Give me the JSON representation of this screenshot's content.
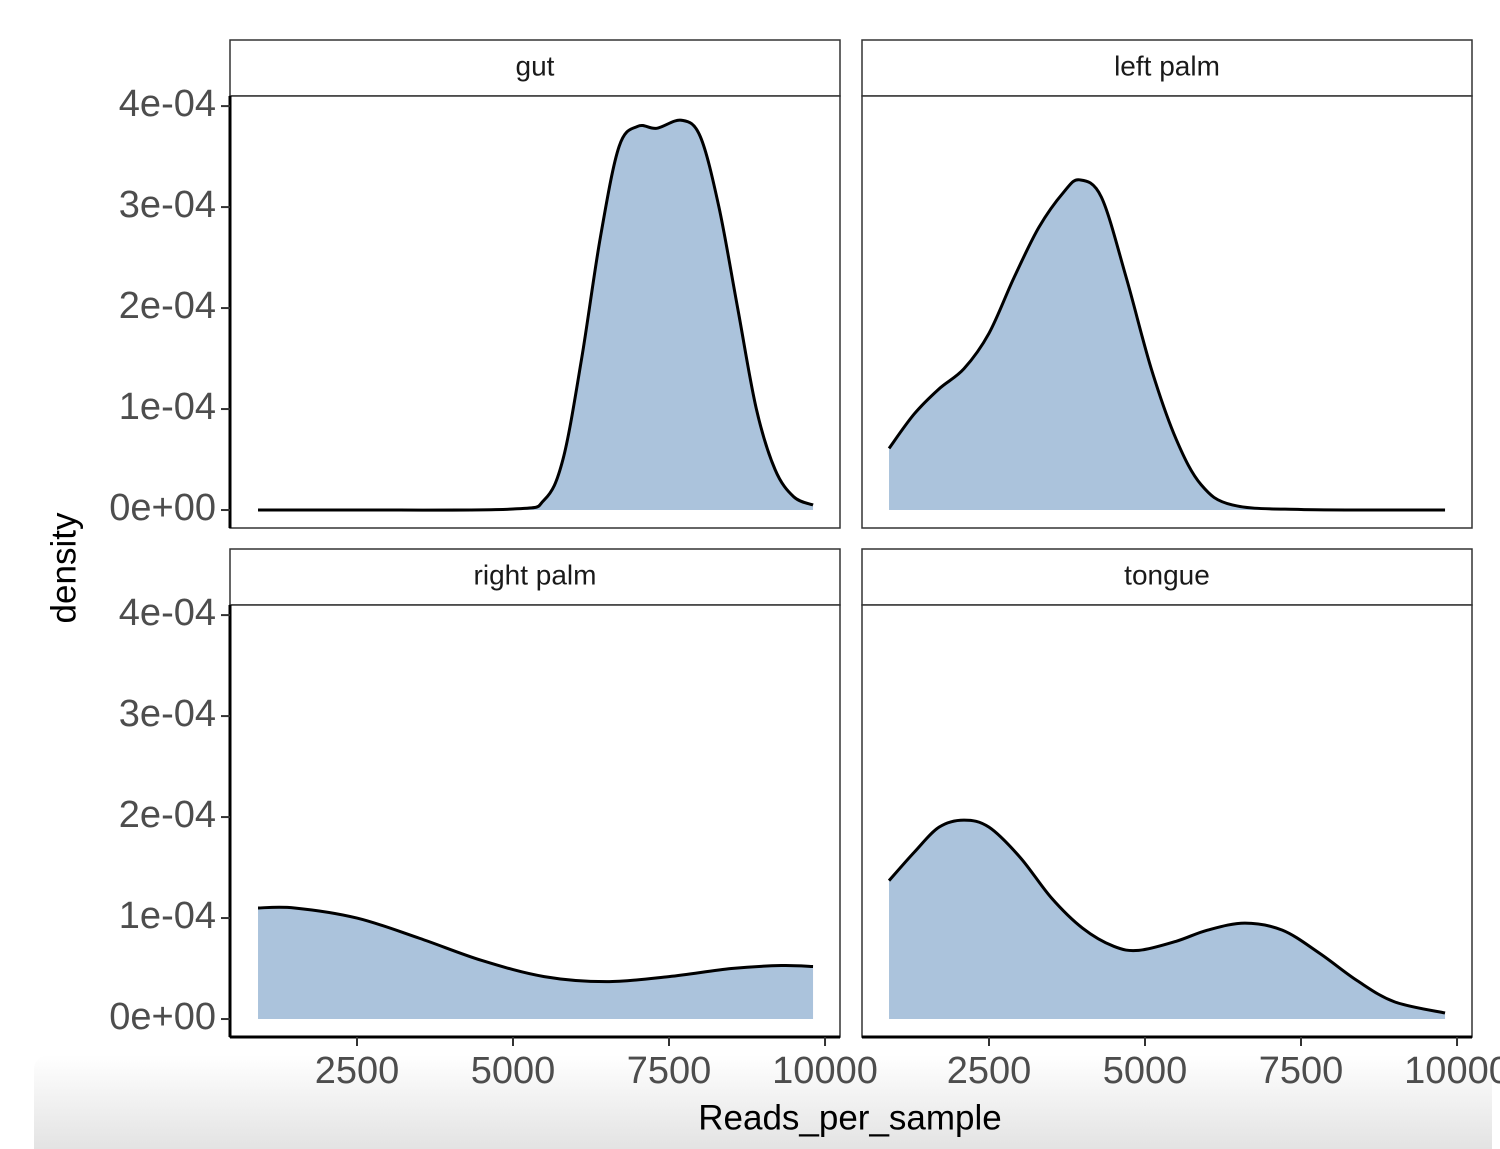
{
  "chart_data": {
    "type": "area",
    "x_label": "Reads_per_sample",
    "y_label": "density",
    "fill_color": "#abc3dc",
    "line_color": "#000000",
    "xlim": [
      465,
      10240
    ],
    "xticks": [
      2500,
      5000,
      7500,
      10000
    ],
    "ylim": [
      -1.78e-05,
      0.00041
    ],
    "yticks": [
      {
        "value": 0,
        "label": "0e+00"
      },
      {
        "value": 0.0001,
        "label": "1e-04"
      },
      {
        "value": 0.0002,
        "label": "2e-04"
      },
      {
        "value": 0.0003,
        "label": "3e-04"
      },
      {
        "value": 0.0004,
        "label": "4e-04"
      }
    ],
    "facets": [
      {
        "name": "gut",
        "x": [
          914,
          2500,
          5000,
          5500,
          5800,
          6100,
          6400,
          6700,
          7000,
          7300,
          7700,
          8000,
          8300,
          8600,
          8900,
          9200,
          9500,
          9808
        ],
        "values": [
          0,
          0,
          1e-06,
          1e-05,
          5e-05,
          0.00015,
          0.00027,
          0.00036,
          0.00038,
          0.000378,
          0.000386,
          0.00037,
          0.0003,
          0.0002,
          0.0001,
          4e-05,
          1.3e-05,
          5e-06
        ]
      },
      {
        "name": "left palm",
        "x": [
          898,
          1300,
          1700,
          2100,
          2500,
          2900,
          3300,
          3700,
          3950,
          4300,
          4700,
          5100,
          5500,
          5900,
          6400,
          7500,
          9808
        ],
        "values": [
          6.1e-05,
          9.5e-05,
          0.00012,
          0.00014,
          0.000175,
          0.00023,
          0.00028,
          0.000315,
          0.000327,
          0.00031,
          0.00023,
          0.00014,
          7e-05,
          2.5e-05,
          5e-06,
          5e-07,
          0
        ]
      },
      {
        "name": "right palm",
        "x": [
          914,
          1500,
          2500,
          3500,
          4500,
          5500,
          6500,
          7500,
          8500,
          9300,
          9808
        ],
        "values": [
          0.00011,
          0.00011,
          0.0001,
          8e-05,
          5.8e-05,
          4.2e-05,
          3.7e-05,
          4.2e-05,
          5e-05,
          5.3e-05,
          5.2e-05
        ]
      },
      {
        "name": "tongue",
        "x": [
          898,
          1300,
          1700,
          2100,
          2500,
          3000,
          3500,
          4000,
          4500,
          4900,
          5500,
          6000,
          6600,
          7200,
          7800,
          8400,
          9000,
          9808
        ],
        "values": [
          0.000137,
          0.000165,
          0.00019,
          0.000197,
          0.00019,
          0.00016,
          0.00012,
          9e-05,
          7.2e-05,
          6.8e-05,
          7.7e-05,
          8.8e-05,
          9.5e-05,
          8.8e-05,
          6.5e-05,
          3.8e-05,
          1.7e-05,
          6e-06
        ]
      }
    ]
  }
}
